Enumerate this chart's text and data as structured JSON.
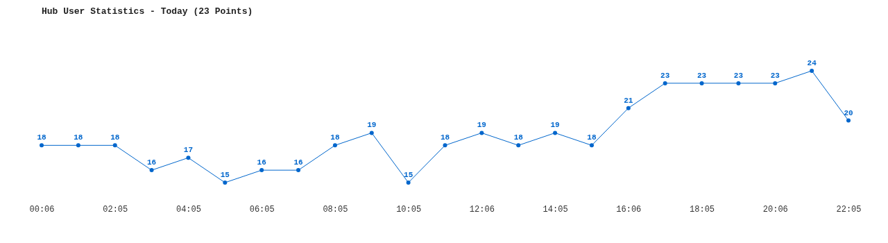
{
  "chart_data": {
    "type": "line",
    "title": "Hub User Statistics - Today (23 Points)",
    "categories": [
      "00:06",
      null,
      "02:05",
      null,
      "04:05",
      null,
      "06:05",
      null,
      "08:05",
      null,
      "10:05",
      null,
      "12:06",
      null,
      "14:05",
      null,
      "16:06",
      null,
      "18:05",
      null,
      "20:06",
      null,
      "22:05"
    ],
    "series": [
      {
        "color": "#0066cc",
        "values": [
          18,
          18,
          18,
          16,
          17,
          15,
          16,
          16,
          18,
          19,
          15,
          18,
          19,
          18,
          19,
          18,
          21,
          23,
          23,
          23,
          23,
          24,
          20
        ]
      }
    ],
    "data_labels": true,
    "marker": "circle",
    "tick_labels": "x",
    "grid": false
  }
}
